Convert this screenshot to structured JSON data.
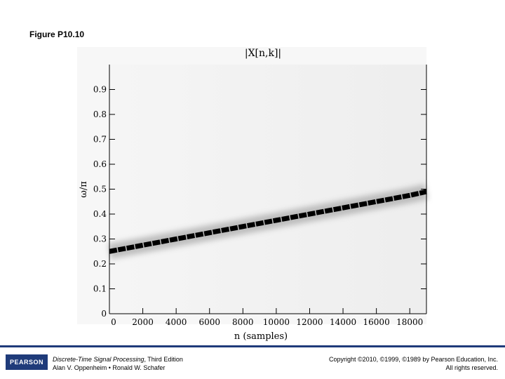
{
  "figure": {
    "label": "Figure P10.10"
  },
  "chart_data": {
    "type": "heatmap",
    "title": "|X[n,k]|",
    "xlabel": "n (samples)",
    "ylabel": "ω/π",
    "xlim": [
      0,
      19000
    ],
    "ylim": [
      0,
      1.0
    ],
    "x_ticks": [
      0,
      2000,
      4000,
      6000,
      8000,
      10000,
      12000,
      14000,
      16000,
      18000
    ],
    "y_ticks": [
      0,
      0.1,
      0.2,
      0.3,
      0.4,
      0.5,
      0.6,
      0.7,
      0.8,
      0.9
    ],
    "grid": false,
    "colormap": "inverted grayscale (dark = large magnitude)",
    "ridge": {
      "description": "linear chirp ridge",
      "x": [
        0,
        2000,
        4000,
        6000,
        8000,
        10000,
        12000,
        14000,
        16000,
        18000,
        19000
      ],
      "y": [
        0.25,
        0.275,
        0.3,
        0.325,
        0.35,
        0.375,
        0.4,
        0.425,
        0.45,
        0.475,
        0.49
      ]
    }
  },
  "footer": {
    "logo_text": "PEARSON",
    "book_title": "Discrete-Time Signal Processing",
    "edition": ", Third Edition",
    "authors": "Alan V. Oppenheim • Ronald W. Schafer",
    "copyright": "Copyright ©2010, ©1999, ©1989 by Pearson Education, Inc.",
    "rights": "All rights reserved."
  }
}
